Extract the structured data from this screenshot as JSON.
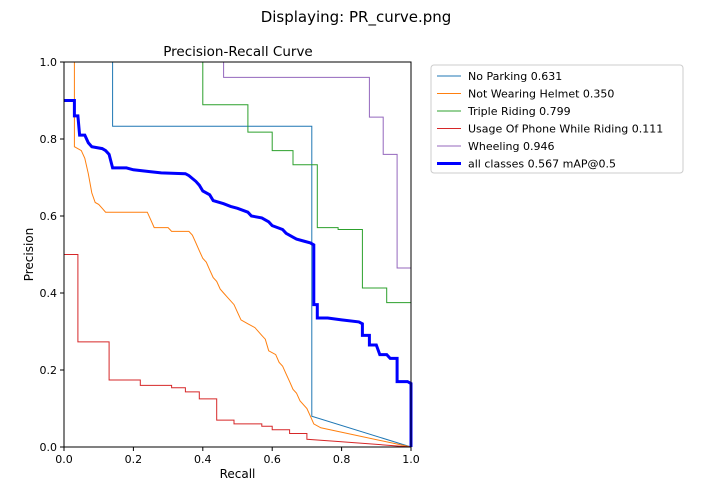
{
  "window": {
    "title": "Displaying: PR_curve.png"
  },
  "chart_data": {
    "type": "line",
    "title": "Precision-Recall Curve",
    "xlabel": "Recall",
    "ylabel": "Precision",
    "xlim": [
      0,
      1
    ],
    "ylim": [
      0,
      1
    ],
    "xticks": [
      "0.0",
      "0.2",
      "0.4",
      "0.6",
      "0.8",
      "1.0"
    ],
    "yticks": [
      "0.0",
      "0.2",
      "0.4",
      "0.6",
      "0.8",
      "1.0"
    ],
    "grid": false,
    "legend_position": "outside-right",
    "series": [
      {
        "name": "No Parking 0.631",
        "color": "#1f77b4",
        "width": 1,
        "points": [
          [
            0,
            1.0
          ],
          [
            0.14,
            1.0
          ],
          [
            0.14,
            0.833
          ],
          [
            0.714,
            0.833
          ],
          [
            0.714,
            0.08
          ],
          [
            1.0,
            0.0
          ]
        ]
      },
      {
        "name": "Not Wearing Helmet 0.350",
        "color": "#ff7f0e",
        "width": 1,
        "points": [
          [
            0,
            1.0
          ],
          [
            0.03,
            1.0
          ],
          [
            0.03,
            0.78
          ],
          [
            0.05,
            0.77
          ],
          [
            0.06,
            0.75
          ],
          [
            0.07,
            0.71
          ],
          [
            0.08,
            0.66
          ],
          [
            0.09,
            0.635
          ],
          [
            0.1,
            0.63
          ],
          [
            0.11,
            0.62
          ],
          [
            0.12,
            0.61
          ],
          [
            0.17,
            0.61
          ],
          [
            0.24,
            0.61
          ],
          [
            0.25,
            0.59
          ],
          [
            0.26,
            0.57
          ],
          [
            0.3,
            0.57
          ],
          [
            0.31,
            0.56
          ],
          [
            0.36,
            0.56
          ],
          [
            0.37,
            0.55
          ],
          [
            0.38,
            0.53
          ],
          [
            0.39,
            0.51
          ],
          [
            0.4,
            0.49
          ],
          [
            0.41,
            0.48
          ],
          [
            0.42,
            0.46
          ],
          [
            0.43,
            0.44
          ],
          [
            0.44,
            0.43
          ],
          [
            0.45,
            0.41
          ],
          [
            0.46,
            0.4
          ],
          [
            0.47,
            0.39
          ],
          [
            0.49,
            0.37
          ],
          [
            0.5,
            0.35
          ],
          [
            0.51,
            0.33
          ],
          [
            0.53,
            0.32
          ],
          [
            0.55,
            0.31
          ],
          [
            0.57,
            0.29
          ],
          [
            0.58,
            0.28
          ],
          [
            0.59,
            0.25
          ],
          [
            0.61,
            0.24
          ],
          [
            0.62,
            0.22
          ],
          [
            0.63,
            0.21
          ],
          [
            0.64,
            0.19
          ],
          [
            0.65,
            0.17
          ],
          [
            0.66,
            0.15
          ],
          [
            0.67,
            0.14
          ],
          [
            0.68,
            0.12
          ],
          [
            0.7,
            0.1
          ],
          [
            0.71,
            0.08
          ],
          [
            0.72,
            0.06
          ],
          [
            0.74,
            0.05
          ],
          [
            1.0,
            0.0
          ]
        ]
      },
      {
        "name": "Triple Riding 0.799",
        "color": "#2ca02c",
        "width": 1,
        "points": [
          [
            0,
            1.0
          ],
          [
            0.4,
            1.0
          ],
          [
            0.4,
            0.889
          ],
          [
            0.53,
            0.889
          ],
          [
            0.53,
            0.818
          ],
          [
            0.6,
            0.818
          ],
          [
            0.6,
            0.77
          ],
          [
            0.66,
            0.77
          ],
          [
            0.66,
            0.733
          ],
          [
            0.73,
            0.733
          ],
          [
            0.73,
            0.57
          ],
          [
            0.79,
            0.57
          ],
          [
            0.79,
            0.565
          ],
          [
            0.86,
            0.565
          ],
          [
            0.86,
            0.413
          ],
          [
            0.93,
            0.413
          ],
          [
            0.93,
            0.375
          ],
          [
            1.0,
            0.375
          ],
          [
            1.0,
            0.0
          ]
        ]
      },
      {
        "name": "Usage Of Phone While Riding 0.111",
        "color": "#d62728",
        "width": 1,
        "points": [
          [
            0,
            0.5
          ],
          [
            0.04,
            0.5
          ],
          [
            0.04,
            0.273
          ],
          [
            0.13,
            0.273
          ],
          [
            0.13,
            0.174
          ],
          [
            0.22,
            0.174
          ],
          [
            0.22,
            0.16
          ],
          [
            0.31,
            0.16
          ],
          [
            0.31,
            0.154
          ],
          [
            0.35,
            0.154
          ],
          [
            0.35,
            0.143
          ],
          [
            0.39,
            0.143
          ],
          [
            0.39,
            0.125
          ],
          [
            0.44,
            0.125
          ],
          [
            0.44,
            0.07
          ],
          [
            0.49,
            0.07
          ],
          [
            0.49,
            0.06
          ],
          [
            0.57,
            0.06
          ],
          [
            0.57,
            0.054
          ],
          [
            0.6,
            0.054
          ],
          [
            0.6,
            0.045
          ],
          [
            0.65,
            0.045
          ],
          [
            0.65,
            0.035
          ],
          [
            0.7,
            0.035
          ],
          [
            0.7,
            0.02
          ],
          [
            0.78,
            0.015
          ],
          [
            1.0,
            0.0
          ]
        ]
      },
      {
        "name": "Wheeling 0.946",
        "color": "#9467bd",
        "width": 1,
        "points": [
          [
            0,
            1.0
          ],
          [
            0.46,
            1.0
          ],
          [
            0.46,
            0.96
          ],
          [
            0.88,
            0.96
          ],
          [
            0.88,
            0.857
          ],
          [
            0.92,
            0.857
          ],
          [
            0.92,
            0.76
          ],
          [
            0.96,
            0.76
          ],
          [
            0.96,
            0.465
          ],
          [
            1.0,
            0.465
          ],
          [
            1.0,
            0.0
          ]
        ]
      },
      {
        "name": "all classes 0.567 mAP@0.5",
        "color": "#0000ff",
        "width": 3,
        "points": [
          [
            0,
            0.9
          ],
          [
            0.03,
            0.9
          ],
          [
            0.03,
            0.86
          ],
          [
            0.04,
            0.86
          ],
          [
            0.045,
            0.81
          ],
          [
            0.06,
            0.81
          ],
          [
            0.07,
            0.79
          ],
          [
            0.08,
            0.78
          ],
          [
            0.11,
            0.775
          ],
          [
            0.12,
            0.77
          ],
          [
            0.13,
            0.76
          ],
          [
            0.14,
            0.725
          ],
          [
            0.18,
            0.725
          ],
          [
            0.2,
            0.72
          ],
          [
            0.25,
            0.715
          ],
          [
            0.28,
            0.712
          ],
          [
            0.35,
            0.71
          ],
          [
            0.36,
            0.705
          ],
          [
            0.38,
            0.69
          ],
          [
            0.39,
            0.68
          ],
          [
            0.4,
            0.665
          ],
          [
            0.42,
            0.655
          ],
          [
            0.43,
            0.64
          ],
          [
            0.46,
            0.632
          ],
          [
            0.48,
            0.625
          ],
          [
            0.5,
            0.62
          ],
          [
            0.53,
            0.61
          ],
          [
            0.54,
            0.6
          ],
          [
            0.57,
            0.595
          ],
          [
            0.59,
            0.585
          ],
          [
            0.6,
            0.575
          ],
          [
            0.63,
            0.565
          ],
          [
            0.64,
            0.555
          ],
          [
            0.66,
            0.545
          ],
          [
            0.67,
            0.54
          ],
          [
            0.69,
            0.535
          ],
          [
            0.71,
            0.53
          ],
          [
            0.72,
            0.525
          ],
          [
            0.72,
            0.37
          ],
          [
            0.73,
            0.37
          ],
          [
            0.73,
            0.335
          ],
          [
            0.76,
            0.335
          ],
          [
            0.8,
            0.33
          ],
          [
            0.85,
            0.325
          ],
          [
            0.86,
            0.32
          ],
          [
            0.86,
            0.29
          ],
          [
            0.88,
            0.29
          ],
          [
            0.88,
            0.265
          ],
          [
            0.9,
            0.265
          ],
          [
            0.91,
            0.24
          ],
          [
            0.93,
            0.24
          ],
          [
            0.94,
            0.23
          ],
          [
            0.96,
            0.23
          ],
          [
            0.96,
            0.17
          ],
          [
            0.99,
            0.17
          ],
          [
            1.0,
            0.165
          ],
          [
            1.0,
            0.0
          ]
        ]
      }
    ]
  }
}
